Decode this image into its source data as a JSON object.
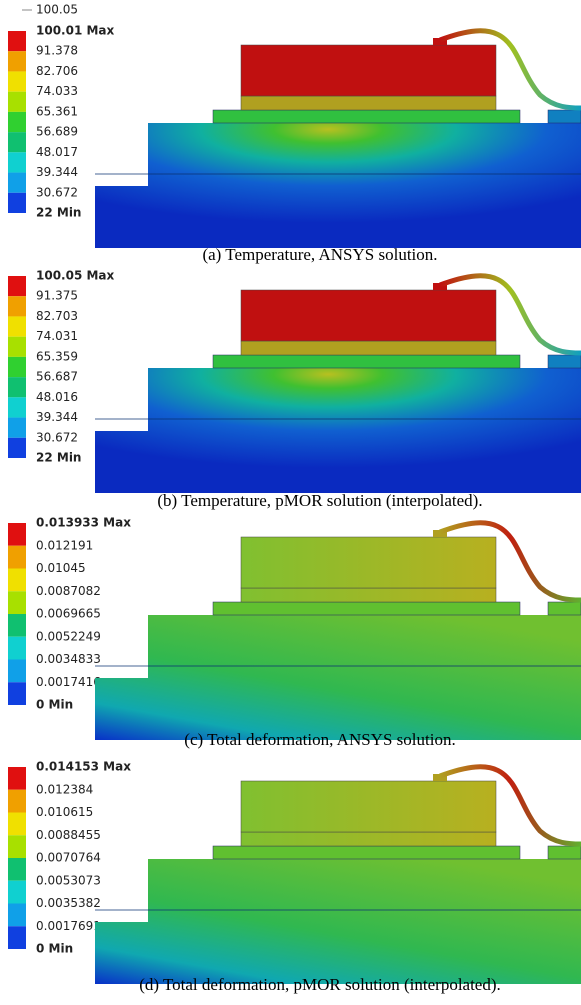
{
  "figure_top_label": "100.05",
  "panels": [
    {
      "legend": [
        "100.01 Max",
        "91.378",
        "82.706",
        "74.033",
        "65.361",
        "56.689",
        "48.017",
        "39.344",
        "30.672",
        "22 Min"
      ],
      "caption": "(a) Temperature, ANSYS solution."
    },
    {
      "legend": [
        "100.05 Max",
        "91.375",
        "82.703",
        "74.031",
        "65.359",
        "56.687",
        "48.016",
        "39.344",
        "30.672",
        "22 Min"
      ],
      "caption": "(b) Temperature, pMOR solution (interpolated)."
    },
    {
      "legend": [
        "0.013933 Max",
        "0.012191",
        "0.01045",
        "0.0087082",
        "0.0069665",
        "0.0052249",
        "0.0034833",
        "0.0017416",
        "0 Min"
      ],
      "caption": "(c) Total deformation, ANSYS solution."
    },
    {
      "legend": [
        "0.014153 Max",
        "0.012384",
        "0.010615",
        "0.0088455",
        "0.0070764",
        "0.0053073",
        "0.0035382",
        "0.0017691",
        "0 Min"
      ],
      "caption": "(d) Total deformation, pMOR solution (interpolated)."
    }
  ]
}
